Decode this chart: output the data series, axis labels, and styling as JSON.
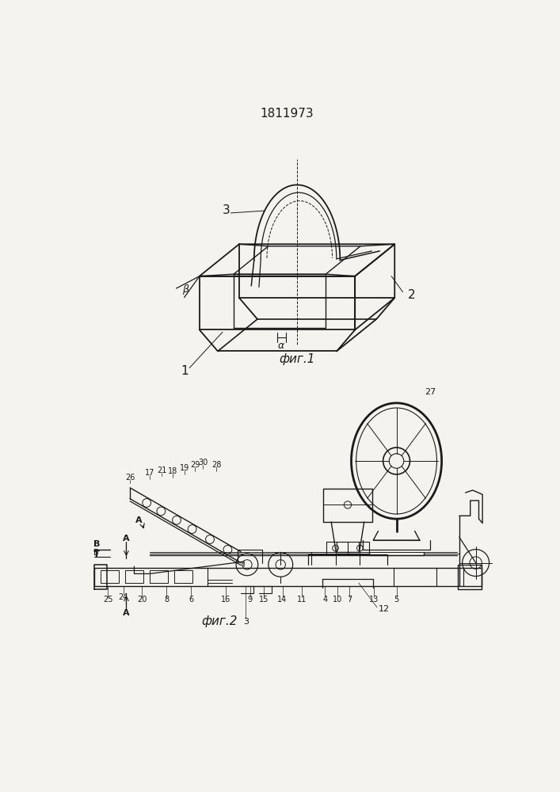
{
  "title": "1811973",
  "fig1_label": "фиг.1",
  "fig2_label": "фиг.2",
  "bg_color": "#f5f3ef",
  "line_color": "#1a1a1a",
  "lw": 0.9
}
